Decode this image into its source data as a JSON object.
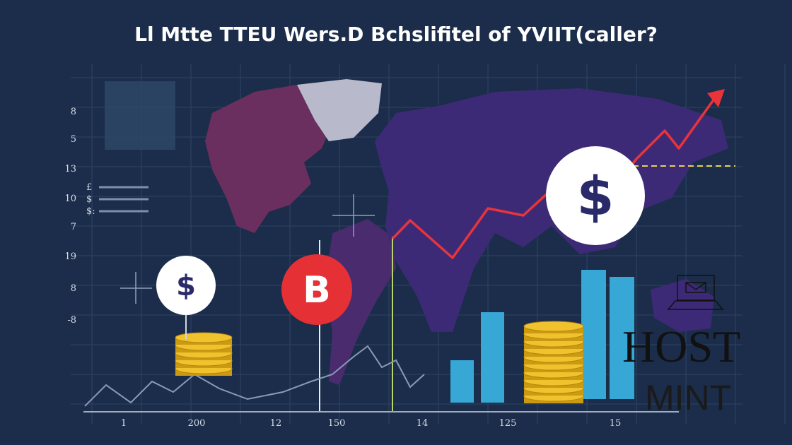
{
  "title": "Ll Mtte TTEU Wers.D Bchslifitel of YVIIT(caller?",
  "y_axis_labels": [
    "8",
    "5",
    "13",
    "10",
    "7",
    "19",
    "8",
    "-8"
  ],
  "x_axis_labels": [
    "1",
    "200",
    "12",
    "150",
    "14",
    "125",
    "15"
  ],
  "legend_labels": [
    "£",
    "$",
    "$:"
  ],
  "icons": {
    "dollar": "$",
    "bitcoin": "B"
  },
  "watermark": {
    "line1": "HOST",
    "line2": "MINT"
  }
}
